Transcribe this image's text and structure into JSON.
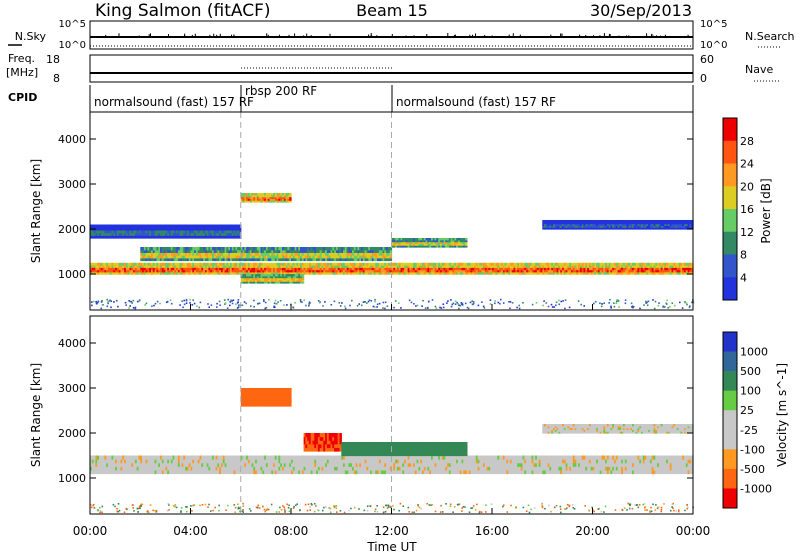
{
  "header": {
    "title_left": "King Salmon (fitACF)",
    "title_center": "Beam 15",
    "title_right": "30/Sep/2013"
  },
  "status_panels": {
    "nsky_label": "N.Sky",
    "nsearch_label": "N.Search",
    "nsky_ticks": [
      "10^5",
      "10^0"
    ],
    "nsearch_ticks": [
      "10^5",
      "10^0"
    ],
    "freq_label_1": "Freq.",
    "freq_label_2": "[MHz]",
    "freq_ticks": [
      "18",
      "8"
    ],
    "nave_label": "Nave",
    "nave_ticks": [
      "60",
      "0"
    ],
    "cpid_label": "CPID",
    "cpid_segments": [
      {
        "label": "normalsound (fast) 157 RF",
        "start": 0,
        "end": 6
      },
      {
        "label": "rbsp 200 RF",
        "start": 6,
        "end": 12
      },
      {
        "label": "normalsound (fast) 157 RF",
        "start": 12,
        "end": 24
      }
    ]
  },
  "colors": {
    "power_scale": [
      "#2233dd",
      "#3355cc",
      "#338866",
      "#66cc66",
      "#ddcc22",
      "#ff9922",
      "#ff5511",
      "#ee0000"
    ],
    "velocity_scale": [
      "#2233cc",
      "#336699",
      "#338855",
      "#66cc44",
      "#c8c8c8",
      "#c8c8c8",
      "#ff9922",
      "#ff6611",
      "#ee0000"
    ]
  },
  "chart_data": [
    {
      "type": "heatmap",
      "name": "power",
      "x": [
        0,
        24
      ],
      "xlabel": "",
      "ylabel": "Slant Range [km]",
      "yticks": [
        1000,
        2000,
        3000,
        4000
      ],
      "ylim": [
        200,
        4600
      ],
      "colorbar": {
        "label": "Power [dB]",
        "ticks": [
          4,
          8,
          12,
          16,
          20,
          24,
          28
        ],
        "range": [
          0,
          32
        ]
      },
      "vlines": [
        6,
        12
      ],
      "bands": [
        {
          "t0": 0,
          "t1": 24,
          "r0": 1000,
          "r1": 1250,
          "power": 26
        },
        {
          "t0": 2,
          "t1": 12,
          "r0": 1300,
          "r1": 1600,
          "power": 18
        },
        {
          "t0": 0,
          "t1": 6,
          "r0": 1800,
          "r1": 2100,
          "power": 8
        },
        {
          "t0": 6,
          "t1": 8,
          "r0": 2600,
          "r1": 2800,
          "power": 25
        },
        {
          "t0": 6,
          "t1": 8.5,
          "r0": 800,
          "r1": 1000,
          "power": 20
        },
        {
          "t0": 12,
          "t1": 15,
          "r0": 1600,
          "r1": 1800,
          "power": 18
        },
        {
          "t0": 18,
          "t1": 24,
          "r0": 2000,
          "r1": 2200,
          "power": 6
        }
      ]
    },
    {
      "type": "heatmap",
      "name": "velocity",
      "x": [
        0,
        24
      ],
      "xlabel": "Time UT",
      "ylabel": "Slant Range [km]",
      "yticks": [
        1000,
        2000,
        3000,
        4000
      ],
      "ylim": [
        200,
        4600
      ],
      "colorbar": {
        "label": "Velocity [m s^-1]",
        "ticks": [
          "1000",
          "500",
          "100",
          "25",
          "-25",
          "-100",
          "-500",
          "-1000"
        ]
      },
      "vlines": [
        6,
        12
      ],
      "xticks": [
        "00:00",
        "04:00",
        "08:00",
        "12:00",
        "16:00",
        "20:00",
        "00:00"
      ],
      "bands": [
        {
          "t0": 0,
          "t1": 24,
          "r0": 1100,
          "r1": 1500,
          "velocity": 0
        },
        {
          "t0": 6,
          "t1": 8,
          "r0": 2600,
          "r1": 3000,
          "velocity": -300
        },
        {
          "t0": 8.5,
          "t1": 10,
          "r0": 1600,
          "r1": 2000,
          "velocity": -500
        },
        {
          "t0": 10,
          "t1": 15,
          "r0": 1500,
          "r1": 1800,
          "velocity": 300
        },
        {
          "t0": 18,
          "t1": 24,
          "r0": 2000,
          "r1": 2200,
          "velocity": 0
        }
      ]
    }
  ]
}
